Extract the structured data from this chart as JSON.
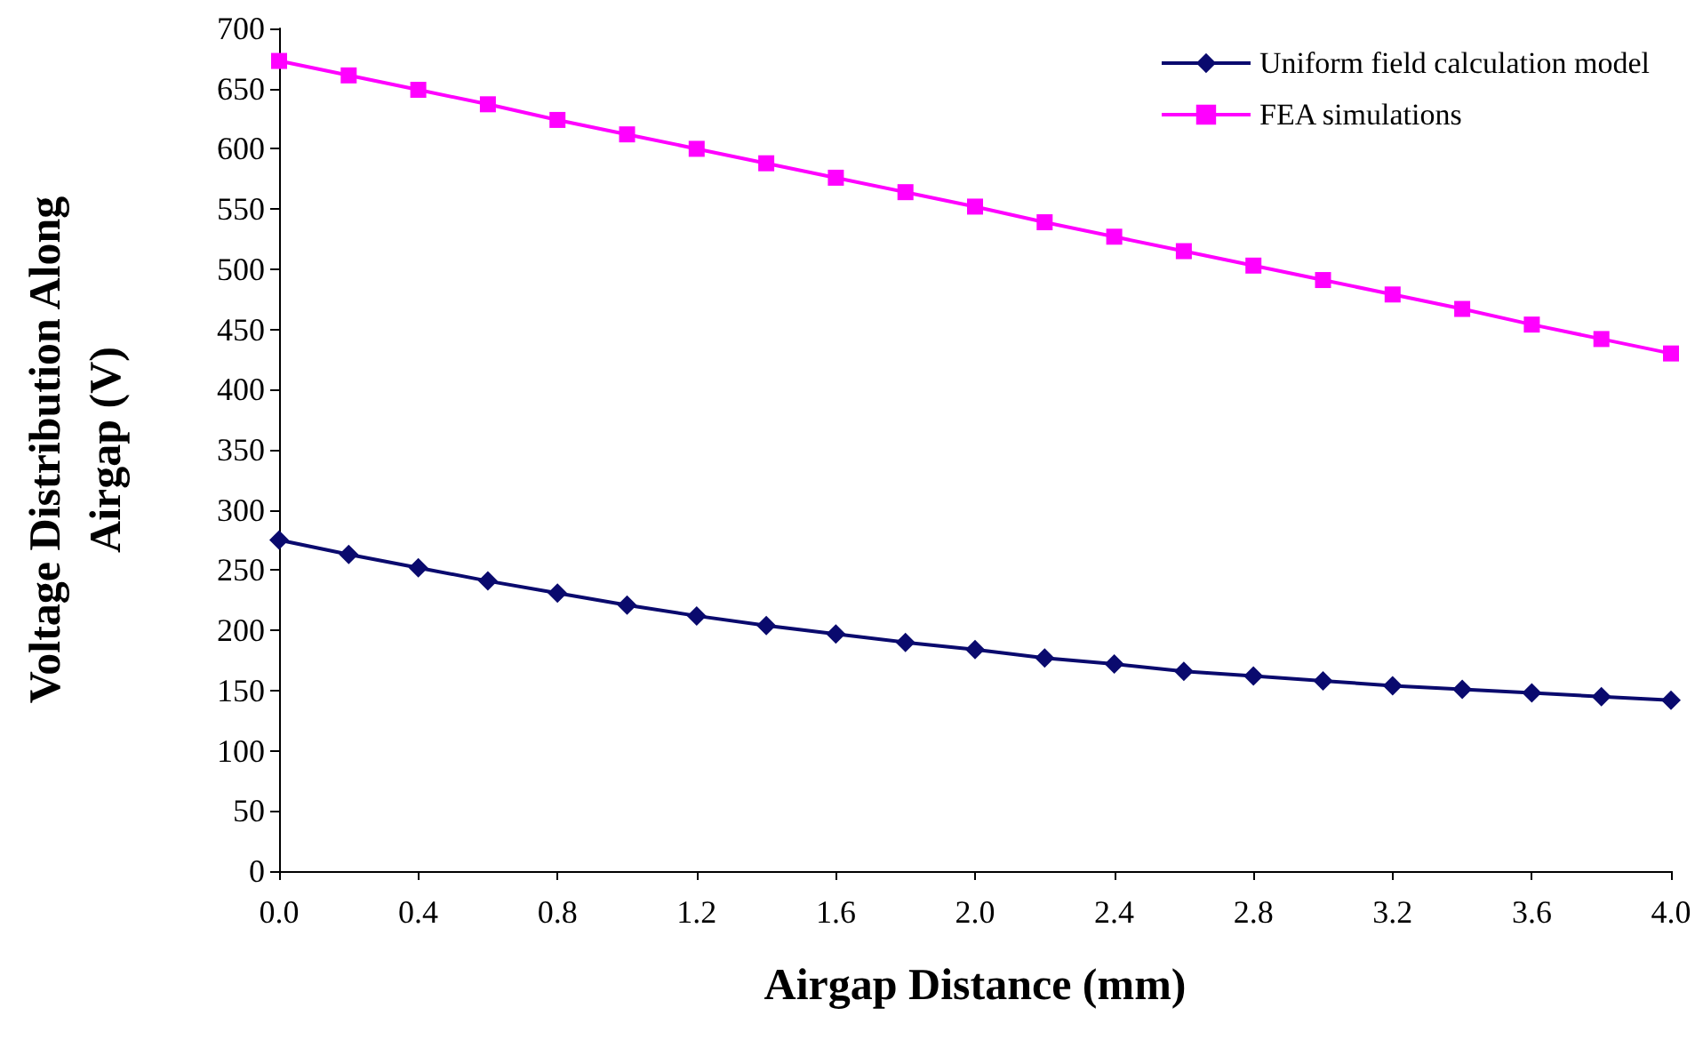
{
  "chart_data": {
    "type": "line",
    "xlabel": "Airgap Distance (mm)",
    "ylabel": "Voltage Distribution Along\nAirgap (V)",
    "x": [
      0,
      0.2,
      0.4,
      0.6,
      0.8,
      1.0,
      1.2,
      1.4,
      1.6,
      1.8,
      2.0,
      2.2,
      2.4,
      2.6,
      2.8,
      3.0,
      3.2,
      3.4,
      3.6,
      3.8,
      4.0
    ],
    "series": [
      {
        "name": "Uniform field calculation model",
        "color": "#0a0a6e",
        "marker": "diamond",
        "values": [
          275,
          263,
          252,
          241,
          231,
          221,
          212,
          204,
          197,
          190,
          184,
          177,
          172,
          166,
          162,
          158,
          154,
          151,
          148,
          145,
          142
        ]
      },
      {
        "name": "FEA simulations",
        "color": "#ff00ff",
        "marker": "square",
        "values": [
          673,
          661,
          649,
          637,
          624,
          612,
          600,
          588,
          576,
          564,
          552,
          539,
          527,
          515,
          503,
          491,
          479,
          467,
          454,
          442,
          430
        ]
      }
    ],
    "xlim": [
      0,
      4
    ],
    "xticks": [
      {
        "value": 0,
        "label": "0.0"
      },
      0.4,
      0.8,
      1.2,
      1.6,
      {
        "value": 2,
        "label": "2.0"
      },
      2.4,
      2.8,
      3.2,
      3.6,
      {
        "value": 4,
        "label": "4.0"
      }
    ],
    "ylim": [
      0,
      700
    ],
    "yticks": [
      0,
      50,
      100,
      150,
      200,
      250,
      300,
      350,
      400,
      450,
      500,
      550,
      600,
      650,
      700
    ],
    "grid": false,
    "legend": "top right",
    "line_style": "solid"
  }
}
